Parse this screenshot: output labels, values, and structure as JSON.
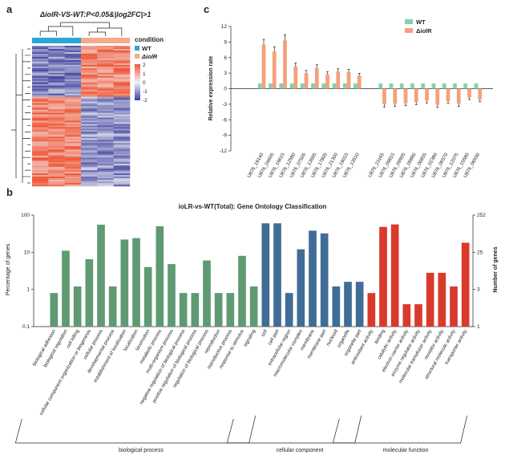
{
  "panel_labels": {
    "a": "a",
    "b": "b",
    "c": "c"
  },
  "colors": {
    "wt": "#7fd3a8",
    "mutant": "#f5a07c",
    "go_bp": "#5f9a72",
    "go_cc": "#3f6d96",
    "go_mf": "#d93a2b",
    "heat_high": "#ef5a3a",
    "heat_mid": "#f2f1f6",
    "heat_low": "#3b3f9c",
    "cond_wt": "#2aa7d7",
    "cond_mut": "#f6aa88"
  },
  "heatmap": {
    "title": "ΔiolR-VS-WT:P<0.05&|log2FC|>1",
    "condition_label": "condition",
    "legend_wt": "WT",
    "legend_mut": "ΔiolR",
    "scale_ticks": [
      "2",
      "1",
      "0",
      "-1",
      "-2"
    ]
  },
  "chart_data": [
    {
      "type": "bar",
      "panel": "c",
      "title": "",
      "xlabel": "",
      "ylabel": "Relative expression rate",
      "ylim": [
        -12,
        12
      ],
      "yticks": [
        -12,
        -9,
        -6,
        -3,
        0,
        3,
        6,
        9,
        12
      ],
      "legend_position": "top-right",
      "categories": [
        "U876_19140",
        "U876_04605",
        "U876_19615",
        "U876_12580",
        "U876_07505",
        "U876_13595",
        "U876_17805",
        "U876_21300",
        "U876_19015",
        "U876_13510",
        "U876_21165",
        "U876_09815",
        "U876_09905",
        "U876_09880",
        "U876_06855",
        "U876_02380",
        "U876_06570",
        "U876_12075",
        "U876_15580",
        "U876_06930"
      ],
      "series": [
        {
          "name": "WT",
          "values": [
            1,
            1,
            1,
            1,
            1,
            1,
            1,
            1,
            1,
            1,
            1,
            1,
            1,
            1,
            1,
            1,
            1,
            1,
            1,
            1
          ]
        },
        {
          "name": "ΔiolR",
          "values": [
            8.5,
            7.2,
            9.3,
            4.3,
            3.0,
            4.0,
            2.8,
            3.3,
            3.2,
            2.5,
            -3.0,
            -2.9,
            -2.8,
            -2.6,
            -2.3,
            -3.1,
            -2.4,
            -2.9,
            -1.7,
            -2.1
          ]
        }
      ]
    },
    {
      "type": "bar",
      "panel": "b",
      "title": "ioLR-vs-WT(Total): Gene Ontology Classification",
      "xlabel": "",
      "ylabel": "Percentage of genes",
      "ylabel_right": "Number of genes",
      "yscale": "log",
      "ylim": [
        0.1,
        100
      ],
      "yticks_left": [
        "100",
        "10",
        "1",
        "0.1"
      ],
      "yticks_right": [
        "252",
        "25",
        "3",
        "1"
      ],
      "groups": [
        "biological process",
        "cellular component",
        "molecular function"
      ],
      "categories": [
        "biological adhesion",
        "biological regulation",
        "cell killing",
        "cellular component organization or biogenesis",
        "cellular process",
        "developmental process",
        "establishment of localization",
        "localization",
        "locomotion",
        "metabolic process",
        "multi-organism process",
        "negative regulation of biological process",
        "positive regulation of biological process",
        "regulation of biological process",
        "reproduction",
        "reproductive process",
        "response to stimulus",
        "signaling",
        "cell",
        "cell part",
        "extracellular region",
        "macromolecular complex",
        "membrane",
        "membrane part",
        "nucleoid",
        "organelle",
        "organelle part",
        "antioxidant activity",
        "binding",
        "catalytic activity",
        "electron carrier activity",
        "enzyme regulator activity",
        "molecular transducer activity",
        "receptor activity",
        "structural molecule activity",
        "transporter activity"
      ],
      "category_group": [
        0,
        0,
        0,
        0,
        0,
        0,
        0,
        0,
        0,
        0,
        0,
        0,
        0,
        0,
        0,
        0,
        0,
        0,
        1,
        1,
        1,
        1,
        1,
        1,
        1,
        1,
        1,
        2,
        2,
        2,
        2,
        2,
        2,
        2,
        2,
        2
      ],
      "values": [
        0.8,
        11,
        1.2,
        6.5,
        55,
        1.2,
        22,
        24,
        4,
        50,
        4.8,
        0.8,
        0.8,
        6,
        0.8,
        0.8,
        8,
        1.2,
        60,
        60,
        0.8,
        12,
        38,
        32,
        1.2,
        1.6,
        1.6,
        0.8,
        48,
        56,
        0.4,
        0.4,
        2.8,
        2.8,
        1.2,
        18
      ]
    }
  ]
}
